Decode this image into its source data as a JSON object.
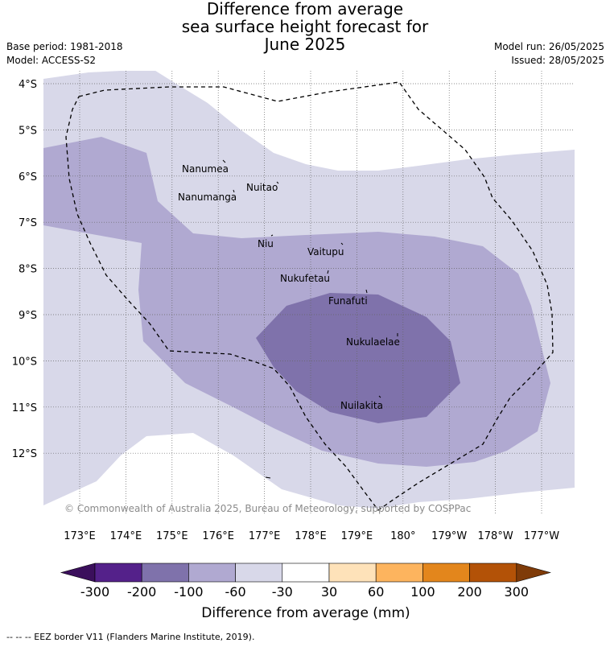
{
  "title": {
    "line1": "Difference from average",
    "line2": "sea surface height forecast for",
    "line3": "June 2025"
  },
  "meta": {
    "base_period": "Base period: 1981-2018",
    "model": "Model: ACCESS-S2",
    "model_run": "Model run: 26/05/2025",
    "issued": "Issued: 28/05/2025"
  },
  "copyright": "© Commonwealth of Australia 2025, Bureau of Meteorology, supported by COSPPac",
  "latitude_labels": [
    "4°S",
    "5°S",
    "6°S",
    "7°S",
    "8°S",
    "9°S",
    "10°S",
    "11°S",
    "12°S"
  ],
  "longitude_labels": [
    "173°E",
    "174°E",
    "175°E",
    "176°E",
    "177°E",
    "178°E",
    "179°E",
    "180°",
    "179°W",
    "178°W",
    "177°W"
  ],
  "places": [
    {
      "name": "Nanumea"
    },
    {
      "name": "Nuitao"
    },
    {
      "name": "Nanumanga"
    },
    {
      "name": "Niu"
    },
    {
      "name": "Vaitupu"
    },
    {
      "name": "Nukufetau"
    },
    {
      "name": "Funafuti"
    },
    {
      "name": "Nukulaelae"
    },
    {
      "name": "Nuilakita"
    }
  ],
  "legend": {
    "title": "Difference from average (mm)",
    "ticks": [
      "-300",
      "-200",
      "-100",
      "-60",
      "-30",
      "30",
      "60",
      "100",
      "200",
      "300"
    ],
    "colors": {
      "below_min": "#3b0f5c",
      "bins": [
        "#54218a",
        "#7f72ab",
        "#b0a9d1",
        "#d8d8e9",
        "#ffffff",
        "#fee2b9",
        "#fdb45e",
        "#e3861c",
        "#b35207"
      ],
      "above_max": "#7f3b08"
    }
  },
  "map_colors": {
    "band_60_30": "#d8d8e9",
    "band_100_60": "#b0a9d1",
    "band_200_100": "#7f72ab",
    "eez_line": "#000000",
    "gridline": "#666666"
  },
  "footer_legend": "--  --  -- EEZ border V11 (Flanders Marine Institute, 2019)."
}
